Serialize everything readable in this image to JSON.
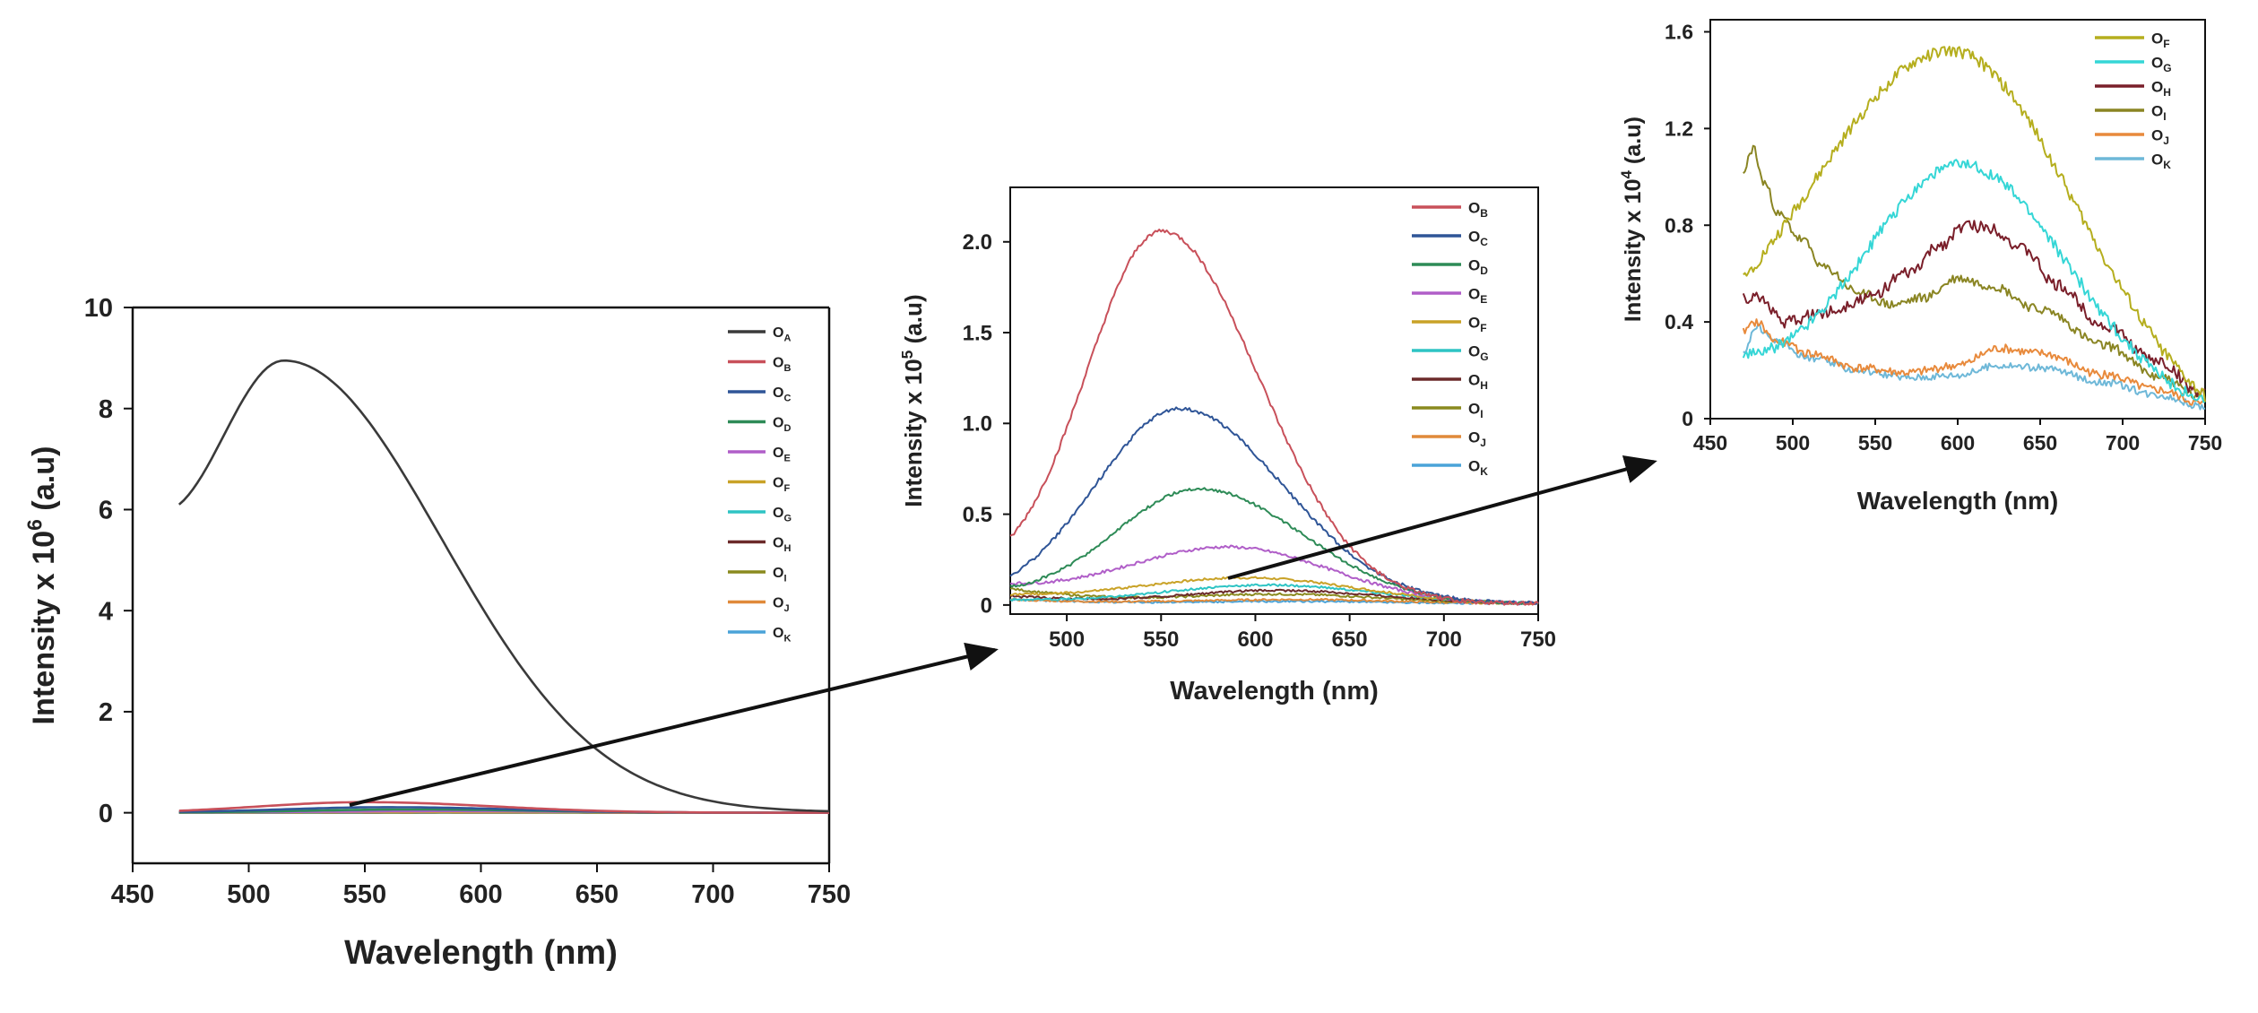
{
  "chart_data": [
    {
      "type": "line",
      "xlabel": "Wavelength (nm)",
      "ylabel_main": "Intensity x 10",
      "ylabel_exp": "6",
      "ylabel_unit": "(a.u)",
      "xlim": [
        450,
        750
      ],
      "ylim": [
        -1,
        10
      ],
      "xticks": [
        450,
        500,
        550,
        600,
        650,
        700,
        750
      ],
      "yticks": [
        0,
        2,
        4,
        6,
        8,
        10
      ],
      "legend_position": "top-right",
      "series": [
        {
          "name": "O",
          "sub": "A",
          "color": "#3a3a3a",
          "kind": "gauss",
          "x": [
            470,
            750
          ],
          "peak_x": 515,
          "peak_y": 8.95,
          "sigma_l": 35,
          "sigma_r": 68,
          "y_start": 6.1,
          "y_end": 0.03
        },
        {
          "name": "O",
          "sub": "B",
          "color": "#c8505a",
          "kind": "gauss",
          "x": [
            470,
            750
          ],
          "peak_x": 550,
          "peak_y": 0.21,
          "sigma_l": 45,
          "sigma_r": 55,
          "y_start": 0.04,
          "y_end": 0.0
        },
        {
          "name": "O",
          "sub": "C",
          "color": "#2f5597",
          "kind": "gauss",
          "x": [
            470,
            750
          ],
          "peak_x": 560,
          "peak_y": 0.11,
          "sigma_l": 45,
          "sigma_r": 55,
          "y_start": 0.02,
          "y_end": 0.0
        },
        {
          "name": "O",
          "sub": "D",
          "color": "#2e8b57",
          "kind": "gauss",
          "x": [
            470,
            750
          ],
          "peak_x": 570,
          "peak_y": 0.065,
          "sigma_l": 45,
          "sigma_r": 55,
          "y_start": 0.01,
          "y_end": 0.0
        },
        {
          "name": "O",
          "sub": "E",
          "color": "#b05ec8",
          "kind": "gauss",
          "x": [
            470,
            750
          ],
          "peak_x": 585,
          "peak_y": 0.032,
          "sigma_l": 50,
          "sigma_r": 55,
          "y_start": 0.01,
          "y_end": 0.0
        },
        {
          "name": "O",
          "sub": "F",
          "color": "#c9a227",
          "kind": "gauss",
          "x": [
            470,
            750
          ],
          "peak_x": 595,
          "peak_y": 0.015,
          "sigma_l": 60,
          "sigma_r": 60,
          "y_start": 0.006,
          "y_end": 0.0
        },
        {
          "name": "O",
          "sub": "G",
          "color": "#2ec4c4",
          "kind": "gauss",
          "x": [
            470,
            750
          ],
          "peak_x": 605,
          "peak_y": 0.011,
          "sigma_l": 55,
          "sigma_r": 60,
          "y_start": 0.003,
          "y_end": 0.0
        },
        {
          "name": "O",
          "sub": "H",
          "color": "#6b2a2a",
          "kind": "gauss",
          "x": [
            470,
            750
          ],
          "peak_x": 610,
          "peak_y": 0.008,
          "sigma_l": 50,
          "sigma_r": 60,
          "y_start": 0.005,
          "y_end": 0.0
        },
        {
          "name": "O",
          "sub": "I",
          "color": "#8a8a1e",
          "kind": "gauss",
          "x": [
            470,
            750
          ],
          "peak_x": 610,
          "peak_y": 0.006,
          "sigma_l": 50,
          "sigma_r": 60,
          "y_start": 0.01,
          "y_end": 0.0
        },
        {
          "name": "O",
          "sub": "J",
          "color": "#e08a3a",
          "kind": "gauss",
          "x": [
            470,
            750
          ],
          "peak_x": 620,
          "peak_y": 0.003,
          "sigma_l": 60,
          "sigma_r": 60,
          "y_start": 0.003,
          "y_end": 0.0
        },
        {
          "name": "O",
          "sub": "K",
          "color": "#4aa3d8",
          "kind": "gauss",
          "x": [
            470,
            750
          ],
          "peak_x": 620,
          "peak_y": 0.002,
          "sigma_l": 60,
          "sigma_r": 60,
          "y_start": 0.003,
          "y_end": 0.0
        }
      ]
    },
    {
      "type": "line",
      "xlabel": "Wavelength (nm)",
      "ylabel_main": "Intensity x 10",
      "ylabel_exp": "5",
      "ylabel_unit": "(a.u)",
      "xlim": [
        470,
        750
      ],
      "ylim": [
        -0.05,
        2.3
      ],
      "xticks": [
        500,
        550,
        600,
        650,
        700,
        750
      ],
      "xtick_labels": [
        "500",
        "550",
        "600",
        "650",
        "700",
        "750"
      ],
      "yticks": [
        0,
        0.5,
        1.0,
        1.5,
        2.0
      ],
      "ytick_labels": [
        "0",
        "0.5",
        "1.0",
        "1.5",
        "2.0"
      ],
      "legend_position": "top-right",
      "series": [
        {
          "name": "O",
          "sub": "B",
          "color": "#c8505a",
          "kind": "gauss",
          "x": [
            470,
            750
          ],
          "peak_x": 550,
          "peak_y": 2.06,
          "sigma_l": 40,
          "sigma_r": 52,
          "y_start": 0.37,
          "y_end": 0.01,
          "noise": 0.012
        },
        {
          "name": "O",
          "sub": "C",
          "color": "#2f5597",
          "kind": "gauss",
          "x": [
            470,
            750
          ],
          "peak_x": 560,
          "peak_y": 1.08,
          "sigma_l": 45,
          "sigma_r": 55,
          "y_start": 0.16,
          "y_end": 0.01,
          "noise": 0.01
        },
        {
          "name": "O",
          "sub": "D",
          "color": "#2e8b57",
          "kind": "gauss",
          "x": [
            470,
            750
          ],
          "peak_x": 570,
          "peak_y": 0.64,
          "sigma_l": 45,
          "sigma_r": 55,
          "y_start": 0.1,
          "y_end": 0.01,
          "noise": 0.008
        },
        {
          "name": "O",
          "sub": "E",
          "color": "#b05ec8",
          "kind": "gauss",
          "x": [
            470,
            750
          ],
          "peak_x": 585,
          "peak_y": 0.32,
          "sigma_l": 55,
          "sigma_r": 55,
          "y_start": 0.12,
          "y_end": 0.01,
          "noise": 0.008
        },
        {
          "name": "O",
          "sub": "F",
          "color": "#c9a227",
          "kind": "gauss",
          "x": [
            470,
            750
          ],
          "peak_x": 595,
          "peak_y": 0.15,
          "sigma_l": 60,
          "sigma_r": 60,
          "y_start": 0.06,
          "y_end": 0.01,
          "noise": 0.006
        },
        {
          "name": "O",
          "sub": "G",
          "color": "#2ec4c4",
          "kind": "gauss",
          "x": [
            470,
            750
          ],
          "peak_x": 605,
          "peak_y": 0.11,
          "sigma_l": 55,
          "sigma_r": 60,
          "y_start": 0.03,
          "y_end": 0.01,
          "noise": 0.006
        },
        {
          "name": "O",
          "sub": "H",
          "color": "#6b2a2a",
          "kind": "gauss",
          "x": [
            470,
            750
          ],
          "peak_x": 610,
          "peak_y": 0.08,
          "sigma_l": 50,
          "sigma_r": 60,
          "y_start": 0.05,
          "y_end": 0.01,
          "noise": 0.006
        },
        {
          "name": "O",
          "sub": "I",
          "color": "#8a8a1e",
          "kind": "gauss",
          "x": [
            470,
            750
          ],
          "peak_x": 610,
          "peak_y": 0.06,
          "sigma_l": 50,
          "sigma_r": 60,
          "y_start": 0.09,
          "y_end": 0.01,
          "noise": 0.006
        },
        {
          "name": "O",
          "sub": "J",
          "color": "#e08a3a",
          "kind": "gauss",
          "x": [
            470,
            750
          ],
          "peak_x": 620,
          "peak_y": 0.03,
          "sigma_l": 60,
          "sigma_r": 60,
          "y_start": 0.03,
          "y_end": 0.01,
          "noise": 0.005
        },
        {
          "name": "O",
          "sub": "K",
          "color": "#4aa3d8",
          "kind": "gauss",
          "x": [
            470,
            750
          ],
          "peak_x": 620,
          "peak_y": 0.02,
          "sigma_l": 60,
          "sigma_r": 60,
          "y_start": 0.03,
          "y_end": 0.01,
          "noise": 0.005
        }
      ]
    },
    {
      "type": "line",
      "xlabel": "Wavelength (nm)",
      "ylabel_main": "Intensity x 10",
      "ylabel_exp": "4",
      "ylabel_unit": "(a.u)",
      "xlim": [
        450,
        750
      ],
      "ylim": [
        0,
        1.65
      ],
      "xticks": [
        450,
        500,
        550,
        600,
        650,
        700,
        750
      ],
      "yticks": [
        0,
        0.4,
        0.8,
        1.2,
        1.6
      ],
      "ytick_labels": [
        "0",
        "0.4",
        "0.8",
        "1.2",
        "1.6"
      ],
      "legend_position": "top-right",
      "series": [
        {
          "name": "O",
          "sub": "F",
          "color": "#b5ae1e",
          "kind": "gauss",
          "x": [
            470,
            750
          ],
          "peak_x": 595,
          "peak_y": 1.52,
          "sigma_l": 85,
          "sigma_r": 75,
          "y_start": 0.58,
          "y_end": 0.09,
          "noise": 0.025
        },
        {
          "name": "O",
          "sub": "G",
          "color": "#35d6d6",
          "kind": "gauss",
          "x": [
            470,
            750
          ],
          "peak_x": 602,
          "peak_y": 1.05,
          "sigma_l": 60,
          "sigma_r": 65,
          "y_start": 0.26,
          "y_end": 0.07,
          "noise": 0.025
        },
        {
          "name": "O",
          "sub": "H",
          "color": "#7a1f2a",
          "kind": "points",
          "x": [
            470,
            480,
            495,
            520,
            545,
            570,
            590,
            605,
            620,
            640,
            660,
            690,
            720,
            750
          ],
          "y": [
            0.5,
            0.5,
            0.4,
            0.44,
            0.5,
            0.6,
            0.72,
            0.8,
            0.79,
            0.7,
            0.55,
            0.38,
            0.24,
            0.1
          ],
          "noise": 0.025
        },
        {
          "name": "O",
          "sub": "I",
          "color": "#8a8523",
          "kind": "points",
          "x": [
            470,
            476,
            482,
            492,
            505,
            520,
            540,
            560,
            580,
            600,
            620,
            650,
            690,
            720,
            750
          ],
          "y": [
            1.02,
            1.12,
            0.98,
            0.84,
            0.74,
            0.62,
            0.52,
            0.47,
            0.5,
            0.58,
            0.55,
            0.45,
            0.3,
            0.18,
            0.08
          ],
          "noise": 0.02
        },
        {
          "name": "O",
          "sub": "J",
          "color": "#e88a3c",
          "kind": "points",
          "x": [
            470,
            478,
            490,
            510,
            540,
            570,
            600,
            625,
            650,
            690,
            720,
            750
          ],
          "y": [
            0.36,
            0.4,
            0.32,
            0.27,
            0.21,
            0.19,
            0.22,
            0.29,
            0.27,
            0.18,
            0.12,
            0.06
          ],
          "noise": 0.018
        },
        {
          "name": "O",
          "sub": "K",
          "color": "#6eb8d8",
          "kind": "points",
          "x": [
            470,
            478,
            490,
            510,
            540,
            570,
            600,
            625,
            650,
            690,
            720,
            750
          ],
          "y": [
            0.28,
            0.38,
            0.32,
            0.25,
            0.2,
            0.17,
            0.18,
            0.22,
            0.21,
            0.15,
            0.1,
            0.05
          ],
          "noise": 0.015
        }
      ]
    }
  ]
}
